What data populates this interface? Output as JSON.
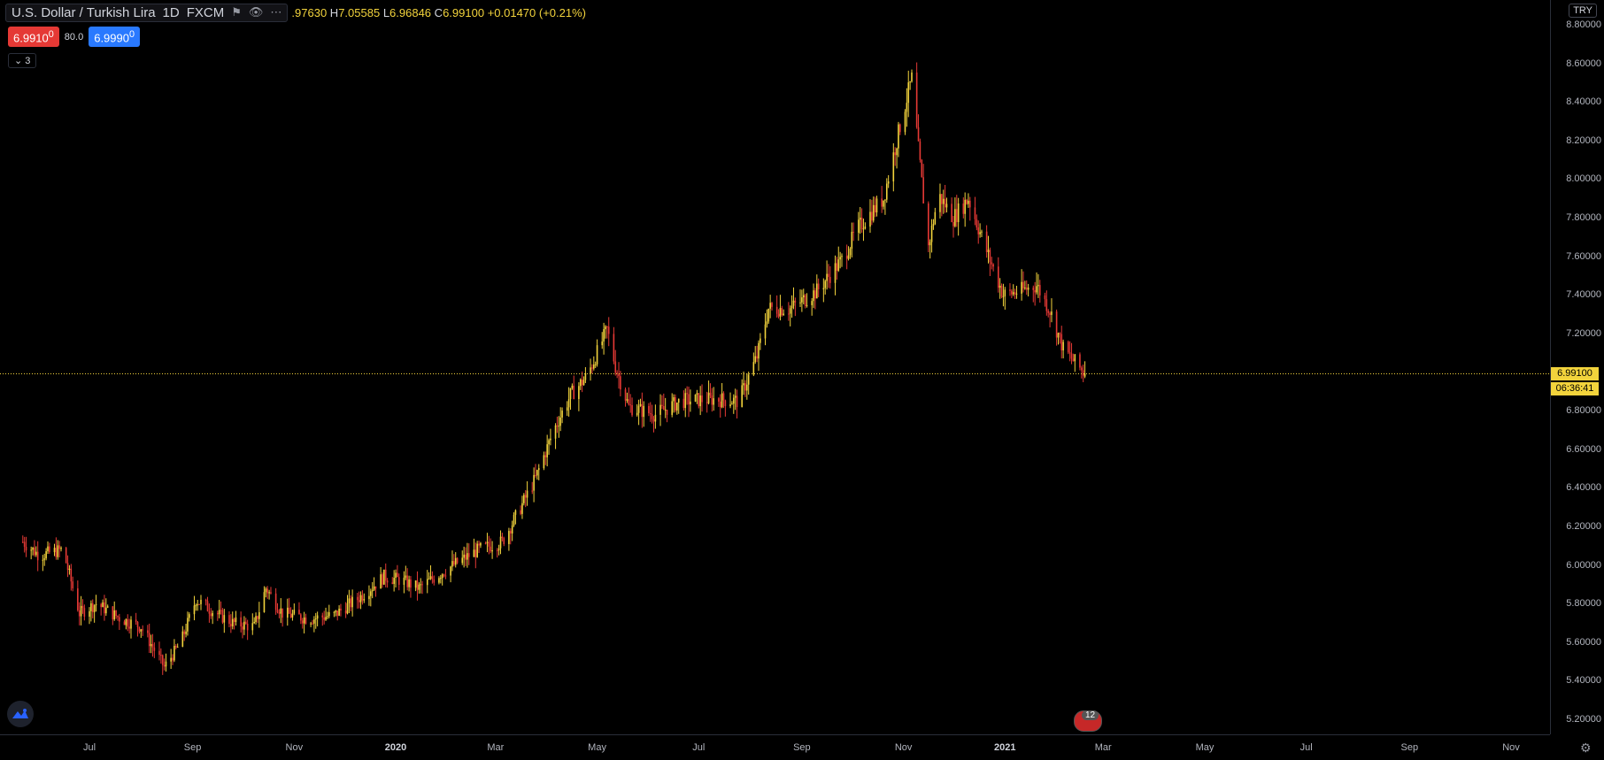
{
  "legend": {
    "symbol": "U.S. Dollar / Turkish Lira",
    "interval": "1D",
    "exchange": "FXCM",
    "open_val": ".97630",
    "high_label": "H",
    "high_val": "7.05585",
    "low_label": "L",
    "low_val": "6.96846",
    "close_label": "C",
    "close_val": "6.99100",
    "change": "+0.01470 (+0.21%)",
    "eye_icon": "eye-icon",
    "more_icon": "more-icon",
    "flag_icon": "flag-icon"
  },
  "quote": {
    "sell": "6.9910",
    "sell_sup": "0",
    "spread": "80.0",
    "buy": "6.9990",
    "buy_sup": "0"
  },
  "indicators_toggle": {
    "count": "3",
    "icon": "chevron-down-icon"
  },
  "currency_badge": "TRY",
  "last_price_label": "6.99100",
  "countdown_label": "06:36:41",
  "events_count": "12",
  "colors": {
    "up": "#f2d33c",
    "down": "#e53935",
    "last_line": "#f2d33c",
    "background": "#000000"
  },
  "chart_data": {
    "type": "candlestick",
    "y_axis_ticks": [
      "8.80000",
      "8.60000",
      "8.40000",
      "8.20000",
      "8.00000",
      "7.80000",
      "7.60000",
      "7.40000",
      "7.20000",
      "6.80000",
      "6.60000",
      "6.40000",
      "6.20000",
      "6.00000",
      "5.80000",
      "5.60000",
      "5.40000",
      "5.20000"
    ],
    "y_axis_values": [
      8.8,
      8.6,
      8.4,
      8.2,
      8.0,
      7.8,
      7.6,
      7.4,
      7.2,
      6.8,
      6.6,
      6.4,
      6.2,
      6.0,
      5.8,
      5.6,
      5.4,
      5.2
    ],
    "ylim": [
      5.15,
      8.9
    ],
    "last_price": 6.991,
    "x_axis_ticks": [
      "Jul",
      "Sep",
      "Nov",
      "2020",
      "Mar",
      "May",
      "Jul",
      "Sep",
      "Nov",
      "2021",
      "Mar",
      "May",
      "Jul",
      "Sep",
      "Nov"
    ],
    "x_axis_dates": [
      "2019-07-01",
      "2019-09-01",
      "2019-11-01",
      "2020-01-01",
      "2020-03-01",
      "2020-05-01",
      "2020-07-01",
      "2020-09-01",
      "2020-11-01",
      "2021-01-01",
      "2021-03-01",
      "2021-05-01",
      "2021-07-01",
      "2021-09-01",
      "2021-11-01"
    ],
    "bold_ticks": [
      "2020",
      "2021"
    ],
    "close_path": [
      {
        "date": "2019-05-22",
        "close": 6.12
      },
      {
        "date": "2019-06-01",
        "close": 6.05
      },
      {
        "date": "2019-06-15",
        "close": 6.08
      },
      {
        "date": "2019-06-25",
        "close": 5.75
      },
      {
        "date": "2019-07-05",
        "close": 5.8
      },
      {
        "date": "2019-07-20",
        "close": 5.72
      },
      {
        "date": "2019-08-01",
        "close": 5.68
      },
      {
        "date": "2019-08-15",
        "close": 5.47
      },
      {
        "date": "2019-08-25",
        "close": 5.6
      },
      {
        "date": "2019-09-03",
        "close": 5.82
      },
      {
        "date": "2019-09-15",
        "close": 5.75
      },
      {
        "date": "2019-09-25",
        "close": 5.7
      },
      {
        "date": "2019-10-08",
        "close": 5.68
      },
      {
        "date": "2019-10-15",
        "close": 5.88
      },
      {
        "date": "2019-10-25",
        "close": 5.75
      },
      {
        "date": "2019-11-10",
        "close": 5.72
      },
      {
        "date": "2019-11-25",
        "close": 5.74
      },
      {
        "date": "2019-12-10",
        "close": 5.83
      },
      {
        "date": "2019-12-25",
        "close": 5.94
      },
      {
        "date": "2020-01-05",
        "close": 5.92
      },
      {
        "date": "2020-01-15",
        "close": 5.88
      },
      {
        "date": "2020-02-01",
        "close": 5.98
      },
      {
        "date": "2020-02-20",
        "close": 6.08
      },
      {
        "date": "2020-03-05",
        "close": 6.12
      },
      {
        "date": "2020-03-15",
        "close": 6.28
      },
      {
        "date": "2020-03-25",
        "close": 6.45
      },
      {
        "date": "2020-04-05",
        "close": 6.7
      },
      {
        "date": "2020-04-15",
        "close": 6.88
      },
      {
        "date": "2020-04-25",
        "close": 6.98
      },
      {
        "date": "2020-05-07",
        "close": 7.22
      },
      {
        "date": "2020-05-12",
        "close": 7.03
      },
      {
        "date": "2020-05-20",
        "close": 6.82
      },
      {
        "date": "2020-06-05",
        "close": 6.78
      },
      {
        "date": "2020-06-20",
        "close": 6.85
      },
      {
        "date": "2020-07-10",
        "close": 6.86
      },
      {
        "date": "2020-07-25",
        "close": 6.85
      },
      {
        "date": "2020-08-05",
        "close": 7.08
      },
      {
        "date": "2020-08-12",
        "close": 7.33
      },
      {
        "date": "2020-08-25",
        "close": 7.33
      },
      {
        "date": "2020-09-10",
        "close": 7.42
      },
      {
        "date": "2020-09-25",
        "close": 7.58
      },
      {
        "date": "2020-10-05",
        "close": 7.75
      },
      {
        "date": "2020-10-20",
        "close": 7.9
      },
      {
        "date": "2020-11-01",
        "close": 8.35
      },
      {
        "date": "2020-11-06",
        "close": 8.52
      },
      {
        "date": "2020-11-10",
        "close": 8.15
      },
      {
        "date": "2020-11-16",
        "close": 7.65
      },
      {
        "date": "2020-11-22",
        "close": 7.92
      },
      {
        "date": "2020-12-01",
        "close": 7.8
      },
      {
        "date": "2020-12-10",
        "close": 7.9
      },
      {
        "date": "2020-12-20",
        "close": 7.65
      },
      {
        "date": "2020-12-31",
        "close": 7.4
      },
      {
        "date": "2021-01-10",
        "close": 7.42
      },
      {
        "date": "2021-01-20",
        "close": 7.45
      },
      {
        "date": "2021-01-28",
        "close": 7.32
      },
      {
        "date": "2021-02-05",
        "close": 7.12
      },
      {
        "date": "2021-02-12",
        "close": 7.05
      },
      {
        "date": "2021-02-18",
        "close": 6.99
      }
    ]
  }
}
